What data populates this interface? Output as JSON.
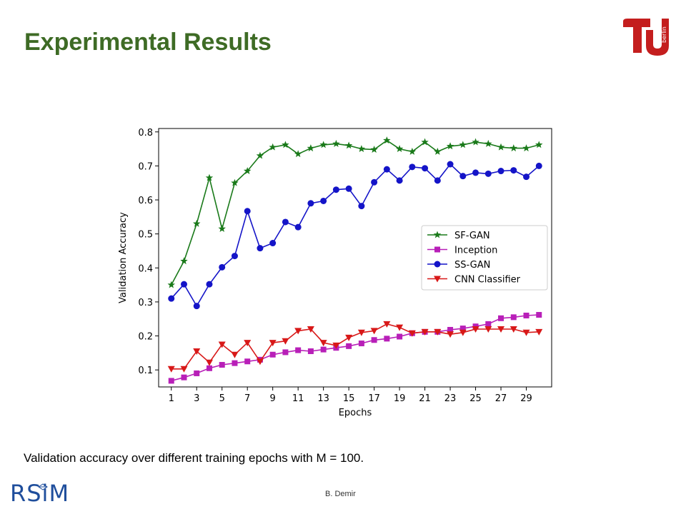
{
  "slide": {
    "title": "Experimental Results",
    "caption": "Validation accuracy over different training epochs with M = 100.",
    "author": "B. Demir",
    "rsim_logo_text": "RSiM",
    "tu_logo_text": "berlin",
    "colors": {
      "title": "#3e6b25",
      "tu_red": "#c41e1e",
      "rsim_blue": "#1f4e9c"
    },
    "icons": [
      "tu-berlin-logo",
      "rsim-logo"
    ]
  },
  "chart_data": {
    "type": "line",
    "xlabel": "Epochs",
    "ylabel": "Validation Accuracy",
    "xlim": [
      0,
      31
    ],
    "ylim": [
      0.05,
      0.81
    ],
    "x_ticks": [
      1,
      3,
      5,
      7,
      9,
      11,
      13,
      15,
      17,
      19,
      21,
      23,
      25,
      27,
      29
    ],
    "y_ticks": [
      0.1,
      0.2,
      0.3,
      0.4,
      0.5,
      0.6,
      0.7,
      0.8
    ],
    "y_tick_labels": [
      "0.1",
      "0.2",
      "0.3",
      "0.4",
      "0.5",
      "0.6",
      "0.7",
      "0.8"
    ],
    "grid": false,
    "legend_position": "center-right",
    "x": [
      1,
      2,
      3,
      4,
      5,
      6,
      7,
      8,
      9,
      10,
      11,
      12,
      13,
      14,
      15,
      16,
      17,
      18,
      19,
      20,
      21,
      22,
      23,
      24,
      25,
      26,
      27,
      28,
      29,
      30
    ],
    "series": [
      {
        "name": "SF-GAN",
        "color": "#1a7a1a",
        "marker": "star",
        "values": [
          0.35,
          0.42,
          0.53,
          0.665,
          0.515,
          0.65,
          0.685,
          0.73,
          0.755,
          0.762,
          0.735,
          0.752,
          0.762,
          0.765,
          0.76,
          0.75,
          0.748,
          0.775,
          0.75,
          0.742,
          0.77,
          0.742,
          0.758,
          0.762,
          0.77,
          0.765,
          0.755,
          0.752,
          0.752,
          0.762
        ]
      },
      {
        "name": "Inception",
        "color": "#b81fb8",
        "marker": "square",
        "values": [
          0.068,
          0.078,
          0.09,
          0.105,
          0.115,
          0.12,
          0.125,
          0.13,
          0.145,
          0.152,
          0.158,
          0.155,
          0.16,
          0.165,
          0.17,
          0.178,
          0.188,
          0.192,
          0.198,
          0.208,
          0.212,
          0.212,
          0.218,
          0.222,
          0.228,
          0.235,
          0.252,
          0.255,
          0.26,
          0.262
        ]
      },
      {
        "name": "SS-GAN",
        "color": "#1414c8",
        "marker": "circle",
        "values": [
          0.31,
          0.352,
          0.288,
          0.352,
          0.402,
          0.435,
          0.567,
          0.458,
          0.473,
          0.535,
          0.52,
          0.59,
          0.597,
          0.63,
          0.633,
          0.582,
          0.652,
          0.69,
          0.657,
          0.697,
          0.693,
          0.657,
          0.705,
          0.67,
          0.68,
          0.677,
          0.685,
          0.687,
          0.668,
          0.7
        ]
      },
      {
        "name": "CNN Classifier",
        "color": "#d81818",
        "marker": "triangle-down",
        "values": [
          0.103,
          0.103,
          0.155,
          0.122,
          0.175,
          0.145,
          0.18,
          0.125,
          0.18,
          0.185,
          0.215,
          0.22,
          0.18,
          0.172,
          0.195,
          0.21,
          0.215,
          0.235,
          0.225,
          0.208,
          0.212,
          0.212,
          0.205,
          0.21,
          0.22,
          0.22,
          0.22,
          0.22,
          0.21,
          0.212
        ]
      }
    ]
  }
}
